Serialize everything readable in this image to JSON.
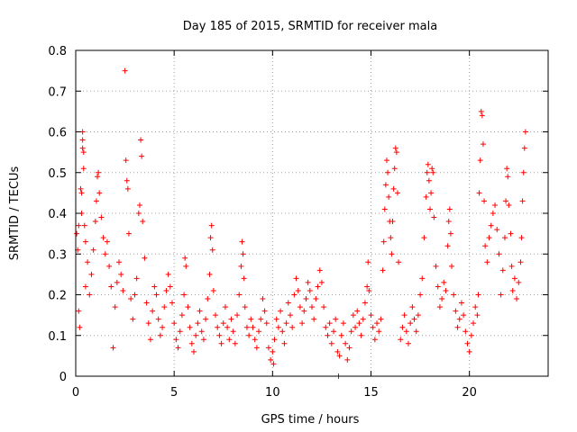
{
  "chart_data": {
    "type": "scatter",
    "title": "Day 185 of 2015, SRMTID for receiver mala",
    "xlabel": "GPS time / hours",
    "ylabel": "SRMTID / TECUs",
    "xlim": [
      0,
      24
    ],
    "ylim": [
      0,
      0.8
    ],
    "xticks": [
      0,
      5,
      10,
      15,
      20
    ],
    "xtick_labels": [
      "0",
      "5",
      "10",
      "15",
      "20"
    ],
    "yticks": [
      0,
      0.1,
      0.2,
      0.3,
      0.4,
      0.5,
      0.6,
      0.7,
      0.8
    ],
    "ytick_labels": [
      "0",
      "0.1",
      "0.2",
      "0.3",
      "0.4",
      "0.5",
      "0.6",
      "0.7",
      "0.8"
    ],
    "grid": true,
    "marker": "+",
    "marker_color": "#ff0000",
    "series": [
      {
        "name": "SRMTID",
        "points": [
          [
            0.05,
            0.35
          ],
          [
            0.1,
            0.31
          ],
          [
            0.15,
            0.37
          ],
          [
            0.15,
            0.16
          ],
          [
            0.2,
            0.12
          ],
          [
            0.25,
            0.46
          ],
          [
            0.3,
            0.45
          ],
          [
            0.3,
            0.4
          ],
          [
            0.35,
            0.6
          ],
          [
            0.35,
            0.58
          ],
          [
            0.35,
            0.56
          ],
          [
            0.4,
            0.55
          ],
          [
            0.4,
            0.51
          ],
          [
            0.45,
            0.37
          ],
          [
            0.5,
            0.33
          ],
          [
            0.5,
            0.22
          ],
          [
            0.6,
            0.28
          ],
          [
            0.7,
            0.2
          ],
          [
            0.8,
            0.25
          ],
          [
            0.9,
            0.31
          ],
          [
            1.0,
            0.38
          ],
          [
            1.05,
            0.43
          ],
          [
            1.1,
            0.49
          ],
          [
            1.15,
            0.5
          ],
          [
            1.2,
            0.45
          ],
          [
            1.3,
            0.39
          ],
          [
            1.4,
            0.34
          ],
          [
            1.5,
            0.3
          ],
          [
            1.6,
            0.33
          ],
          [
            1.7,
            0.27
          ],
          [
            1.8,
            0.22
          ],
          [
            1.9,
            0.07
          ],
          [
            2.0,
            0.17
          ],
          [
            2.1,
            0.23
          ],
          [
            2.2,
            0.28
          ],
          [
            2.3,
            0.25
          ],
          [
            2.4,
            0.21
          ],
          [
            2.5,
            0.75
          ],
          [
            2.55,
            0.53
          ],
          [
            2.6,
            0.48
          ],
          [
            2.65,
            0.46
          ],
          [
            2.7,
            0.35
          ],
          [
            2.8,
            0.19
          ],
          [
            2.9,
            0.14
          ],
          [
            3.0,
            0.2
          ],
          [
            3.1,
            0.24
          ],
          [
            3.2,
            0.4
          ],
          [
            3.25,
            0.42
          ],
          [
            3.3,
            0.58
          ],
          [
            3.35,
            0.54
          ],
          [
            3.4,
            0.38
          ],
          [
            3.5,
            0.29
          ],
          [
            3.6,
            0.18
          ],
          [
            3.7,
            0.13
          ],
          [
            3.8,
            0.09
          ],
          [
            3.9,
            0.16
          ],
          [
            4.0,
            0.22
          ],
          [
            4.1,
            0.2
          ],
          [
            4.2,
            0.14
          ],
          [
            4.3,
            0.1
          ],
          [
            4.4,
            0.12
          ],
          [
            4.5,
            0.17
          ],
          [
            4.6,
            0.21
          ],
          [
            4.7,
            0.25
          ],
          [
            4.8,
            0.22
          ],
          [
            4.9,
            0.18
          ],
          [
            5.0,
            0.13
          ],
          [
            5.1,
            0.09
          ],
          [
            5.2,
            0.07
          ],
          [
            5.3,
            0.11
          ],
          [
            5.4,
            0.15
          ],
          [
            5.5,
            0.2
          ],
          [
            5.55,
            0.29
          ],
          [
            5.6,
            0.27
          ],
          [
            5.7,
            0.17
          ],
          [
            5.8,
            0.12
          ],
          [
            5.9,
            0.08
          ],
          [
            6.0,
            0.06
          ],
          [
            6.1,
            0.1
          ],
          [
            6.2,
            0.13
          ],
          [
            6.3,
            0.16
          ],
          [
            6.4,
            0.11
          ],
          [
            6.5,
            0.09
          ],
          [
            6.6,
            0.14
          ],
          [
            6.7,
            0.19
          ],
          [
            6.8,
            0.25
          ],
          [
            6.85,
            0.34
          ],
          [
            6.9,
            0.37
          ],
          [
            6.95,
            0.31
          ],
          [
            7.0,
            0.21
          ],
          [
            7.1,
            0.15
          ],
          [
            7.2,
            0.12
          ],
          [
            7.3,
            0.1
          ],
          [
            7.4,
            0.08
          ],
          [
            7.5,
            0.13
          ],
          [
            7.6,
            0.17
          ],
          [
            7.7,
            0.12
          ],
          [
            7.8,
            0.09
          ],
          [
            7.9,
            0.14
          ],
          [
            8.0,
            0.11
          ],
          [
            8.1,
            0.08
          ],
          [
            8.2,
            0.15
          ],
          [
            8.3,
            0.2
          ],
          [
            8.4,
            0.27
          ],
          [
            8.45,
            0.33
          ],
          [
            8.5,
            0.3
          ],
          [
            8.55,
            0.24
          ],
          [
            8.6,
            0.17
          ],
          [
            8.7,
            0.12
          ],
          [
            8.8,
            0.1
          ],
          [
            8.9,
            0.14
          ],
          [
            9.0,
            0.12
          ],
          [
            9.1,
            0.09
          ],
          [
            9.2,
            0.07
          ],
          [
            9.3,
            0.11
          ],
          [
            9.4,
            0.14
          ],
          [
            9.5,
            0.19
          ],
          [
            9.6,
            0.16
          ],
          [
            9.7,
            0.13
          ],
          [
            9.8,
            0.07
          ],
          [
            9.9,
            0.04
          ],
          [
            10.0,
            0.06
          ],
          [
            10.05,
            0.03
          ],
          [
            10.1,
            0.09
          ],
          [
            10.2,
            0.14
          ],
          [
            10.3,
            0.12
          ],
          [
            10.4,
            0.16
          ],
          [
            10.5,
            0.11
          ],
          [
            10.6,
            0.08
          ],
          [
            10.7,
            0.13
          ],
          [
            10.8,
            0.18
          ],
          [
            10.9,
            0.15
          ],
          [
            11.0,
            0.12
          ],
          [
            11.1,
            0.2
          ],
          [
            11.2,
            0.24
          ],
          [
            11.3,
            0.21
          ],
          [
            11.4,
            0.17
          ],
          [
            11.5,
            0.13
          ],
          [
            11.6,
            0.16
          ],
          [
            11.7,
            0.19
          ],
          [
            11.8,
            0.23
          ],
          [
            11.9,
            0.21
          ],
          [
            12.0,
            0.17
          ],
          [
            12.1,
            0.14
          ],
          [
            12.2,
            0.19
          ],
          [
            12.3,
            0.22
          ],
          [
            12.4,
            0.26
          ],
          [
            12.5,
            0.23
          ],
          [
            12.6,
            0.17
          ],
          [
            12.7,
            0.12
          ],
          [
            12.8,
            0.1
          ],
          [
            12.9,
            0.13
          ],
          [
            13.0,
            0.08
          ],
          [
            13.1,
            0.11
          ],
          [
            13.2,
            0.14
          ],
          [
            13.3,
            0.06
          ],
          [
            13.35,
            0.0
          ],
          [
            13.4,
            0.05
          ],
          [
            13.5,
            0.1
          ],
          [
            13.6,
            0.13
          ],
          [
            13.7,
            0.08
          ],
          [
            13.8,
            0.04
          ],
          [
            13.9,
            0.07
          ],
          [
            14.0,
            0.11
          ],
          [
            14.1,
            0.15
          ],
          [
            14.2,
            0.12
          ],
          [
            14.3,
            0.16
          ],
          [
            14.4,
            0.13
          ],
          [
            14.5,
            0.1
          ],
          [
            14.6,
            0.14
          ],
          [
            14.7,
            0.18
          ],
          [
            14.8,
            0.22
          ],
          [
            14.85,
            0.28
          ],
          [
            14.9,
            0.21
          ],
          [
            15.0,
            0.15
          ],
          [
            15.1,
            0.12
          ],
          [
            15.2,
            0.09
          ],
          [
            15.3,
            0.13
          ],
          [
            15.4,
            0.11
          ],
          [
            15.5,
            0.14
          ],
          [
            15.6,
            0.26
          ],
          [
            15.65,
            0.33
          ],
          [
            15.7,
            0.41
          ],
          [
            15.75,
            0.47
          ],
          [
            15.8,
            0.53
          ],
          [
            15.85,
            0.5
          ],
          [
            15.9,
            0.44
          ],
          [
            15.95,
            0.38
          ],
          [
            16.0,
            0.34
          ],
          [
            16.05,
            0.3
          ],
          [
            16.1,
            0.38
          ],
          [
            16.15,
            0.46
          ],
          [
            16.2,
            0.51
          ],
          [
            16.25,
            0.56
          ],
          [
            16.3,
            0.55
          ],
          [
            16.35,
            0.45
          ],
          [
            16.4,
            0.28
          ],
          [
            16.5,
            0.09
          ],
          [
            16.6,
            0.12
          ],
          [
            16.7,
            0.15
          ],
          [
            16.8,
            0.11
          ],
          [
            16.9,
            0.08
          ],
          [
            17.0,
            0.13
          ],
          [
            17.1,
            0.17
          ],
          [
            17.2,
            0.14
          ],
          [
            17.3,
            0.11
          ],
          [
            17.4,
            0.15
          ],
          [
            17.5,
            0.2
          ],
          [
            17.6,
            0.24
          ],
          [
            17.7,
            0.34
          ],
          [
            17.8,
            0.44
          ],
          [
            17.85,
            0.5
          ],
          [
            17.9,
            0.52
          ],
          [
            17.95,
            0.48
          ],
          [
            18.0,
            0.41
          ],
          [
            18.05,
            0.45
          ],
          [
            18.1,
            0.51
          ],
          [
            18.15,
            0.5
          ],
          [
            18.2,
            0.39
          ],
          [
            18.3,
            0.27
          ],
          [
            18.4,
            0.22
          ],
          [
            18.5,
            0.17
          ],
          [
            18.6,
            0.19
          ],
          [
            18.7,
            0.23
          ],
          [
            18.8,
            0.21
          ],
          [
            18.9,
            0.32
          ],
          [
            18.95,
            0.38
          ],
          [
            19.0,
            0.41
          ],
          [
            19.05,
            0.35
          ],
          [
            19.1,
            0.27
          ],
          [
            19.2,
            0.2
          ],
          [
            19.3,
            0.16
          ],
          [
            19.4,
            0.12
          ],
          [
            19.5,
            0.14
          ],
          [
            19.6,
            0.18
          ],
          [
            19.7,
            0.15
          ],
          [
            19.8,
            0.11
          ],
          [
            19.9,
            0.08
          ],
          [
            20.0,
            0.06
          ],
          [
            20.1,
            0.1
          ],
          [
            20.2,
            0.13
          ],
          [
            20.3,
            0.17
          ],
          [
            20.4,
            0.15
          ],
          [
            20.45,
            0.2
          ],
          [
            20.5,
            0.45
          ],
          [
            20.55,
            0.53
          ],
          [
            20.6,
            0.65
          ],
          [
            20.65,
            0.64
          ],
          [
            20.7,
            0.57
          ],
          [
            20.75,
            0.43
          ],
          [
            20.8,
            0.32
          ],
          [
            20.9,
            0.28
          ],
          [
            21.0,
            0.34
          ],
          [
            21.1,
            0.37
          ],
          [
            21.2,
            0.4
          ],
          [
            21.3,
            0.42
          ],
          [
            21.4,
            0.36
          ],
          [
            21.5,
            0.3
          ],
          [
            21.6,
            0.2
          ],
          [
            21.7,
            0.26
          ],
          [
            21.8,
            0.34
          ],
          [
            21.85,
            0.43
          ],
          [
            21.9,
            0.51
          ],
          [
            21.95,
            0.49
          ],
          [
            22.0,
            0.42
          ],
          [
            22.1,
            0.35
          ],
          [
            22.15,
            0.27
          ],
          [
            22.2,
            0.21
          ],
          [
            22.3,
            0.24
          ],
          [
            22.4,
            0.19
          ],
          [
            22.5,
            0.23
          ],
          [
            22.6,
            0.28
          ],
          [
            22.65,
            0.34
          ],
          [
            22.7,
            0.43
          ],
          [
            22.75,
            0.5
          ],
          [
            22.8,
            0.56
          ],
          [
            22.85,
            0.6
          ]
        ]
      }
    ]
  }
}
